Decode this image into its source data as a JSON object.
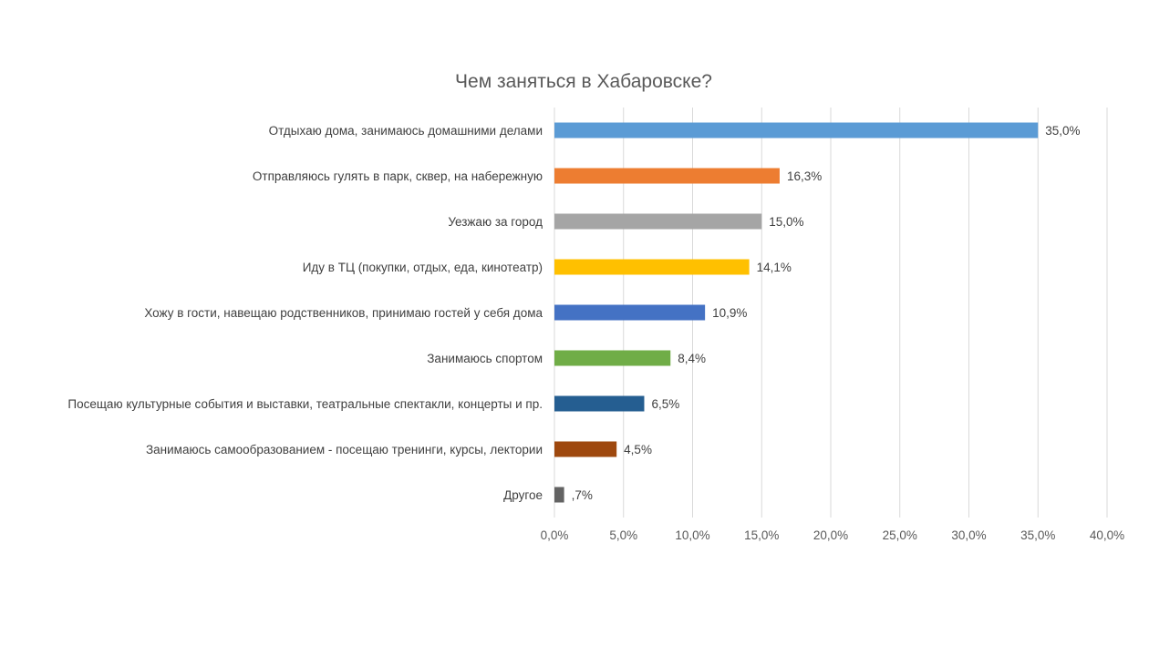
{
  "chart_data": {
    "type": "bar",
    "orientation": "horizontal",
    "title": "Чем заняться в Хабаровске?",
    "categories": [
      "Отдыхаю дома, занимаюсь домашними делами",
      "Отправляюсь гулять в парк, сквер, на набережную",
      "Уезжаю за город",
      "Иду в ТЦ (покупки,  отдых, еда, кинотеатр)",
      "Хожу в гости, навещаю родственников, принимаю гостей у себя дома",
      "Занимаюсь спортом",
      "Посещаю культурные события и выставки, театральные спектакли, концерты и пр.",
      "Занимаюсь самообразованием - посещаю тренинги, курсы, лектории",
      "Другое"
    ],
    "values": [
      35.0,
      16.3,
      15.0,
      14.1,
      10.9,
      8.4,
      6.5,
      4.5,
      0.7
    ],
    "value_labels": [
      "35,0%",
      "16,3%",
      "15,0%",
      "14,1%",
      "10,9%",
      "8,4%",
      "6,5%",
      "4,5%",
      ",7%"
    ],
    "colors": [
      "#5b9bd5",
      "#ed7d31",
      "#a5a5a5",
      "#ffc000",
      "#4472c4",
      "#70ad47",
      "#255e91",
      "#9e480e",
      "#636363"
    ],
    "xlim": [
      0,
      40
    ],
    "x_ticks": [
      0,
      5,
      10,
      15,
      20,
      25,
      30,
      35,
      40
    ],
    "x_tick_labels": [
      "0,0%",
      "5,0%",
      "10,0%",
      "15,0%",
      "20,0%",
      "25,0%",
      "30,0%",
      "35,0%",
      "40,0%"
    ],
    "grid": true,
    "legend": "none"
  }
}
